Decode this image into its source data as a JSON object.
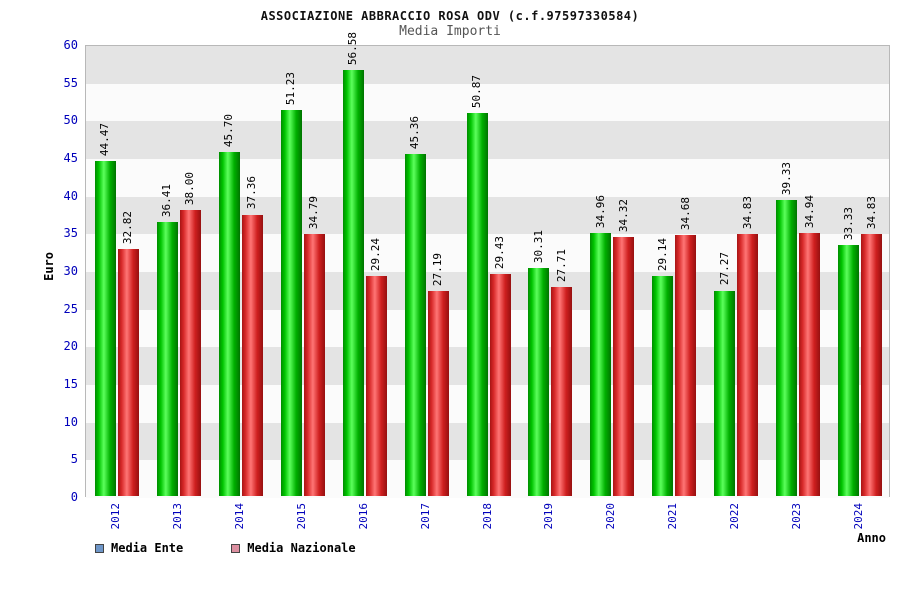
{
  "header": {
    "title": "ASSOCIAZIONE ABBRACCIO ROSA ODV (c.f.97597330584)",
    "subtitle": "Media Importi"
  },
  "chart_data": {
    "type": "bar",
    "title": "Media Importi",
    "categories": [
      "2012",
      "2013",
      "2014",
      "2015",
      "2016",
      "2017",
      "2018",
      "2019",
      "2020",
      "2021",
      "2022",
      "2023",
      "2024"
    ],
    "series": [
      {
        "name": "Media Ente",
        "color": "#22cc22",
        "values": [
          44.47,
          36.41,
          45.7,
          51.23,
          56.58,
          45.36,
          50.87,
          30.31,
          34.96,
          29.14,
          27.27,
          39.33,
          33.33
        ]
      },
      {
        "name": "Media Nazionale",
        "color": "#ee4444",
        "values": [
          32.82,
          38.0,
          37.36,
          34.79,
          29.24,
          27.19,
          29.43,
          27.71,
          34.32,
          34.68,
          34.83,
          34.94,
          34.83
        ]
      }
    ],
    "xlabel": "Anno",
    "ylabel": "Euro",
    "ylim": [
      0,
      60
    ],
    "ytick_step": 5,
    "grid": "horizontal-bands",
    "legend_position": "bottom-left"
  },
  "legend": {
    "items": [
      {
        "label": "Media Ente",
        "swatch": "#6e96c8"
      },
      {
        "label": "Media Nazionale",
        "swatch": "#dc8fa0"
      }
    ]
  },
  "colors": {
    "axis_tick_text": "#0000bb",
    "band_gray": "#e4e4e4",
    "band_light": "#fbfbfb",
    "plot_border": "#b8b8b8"
  }
}
